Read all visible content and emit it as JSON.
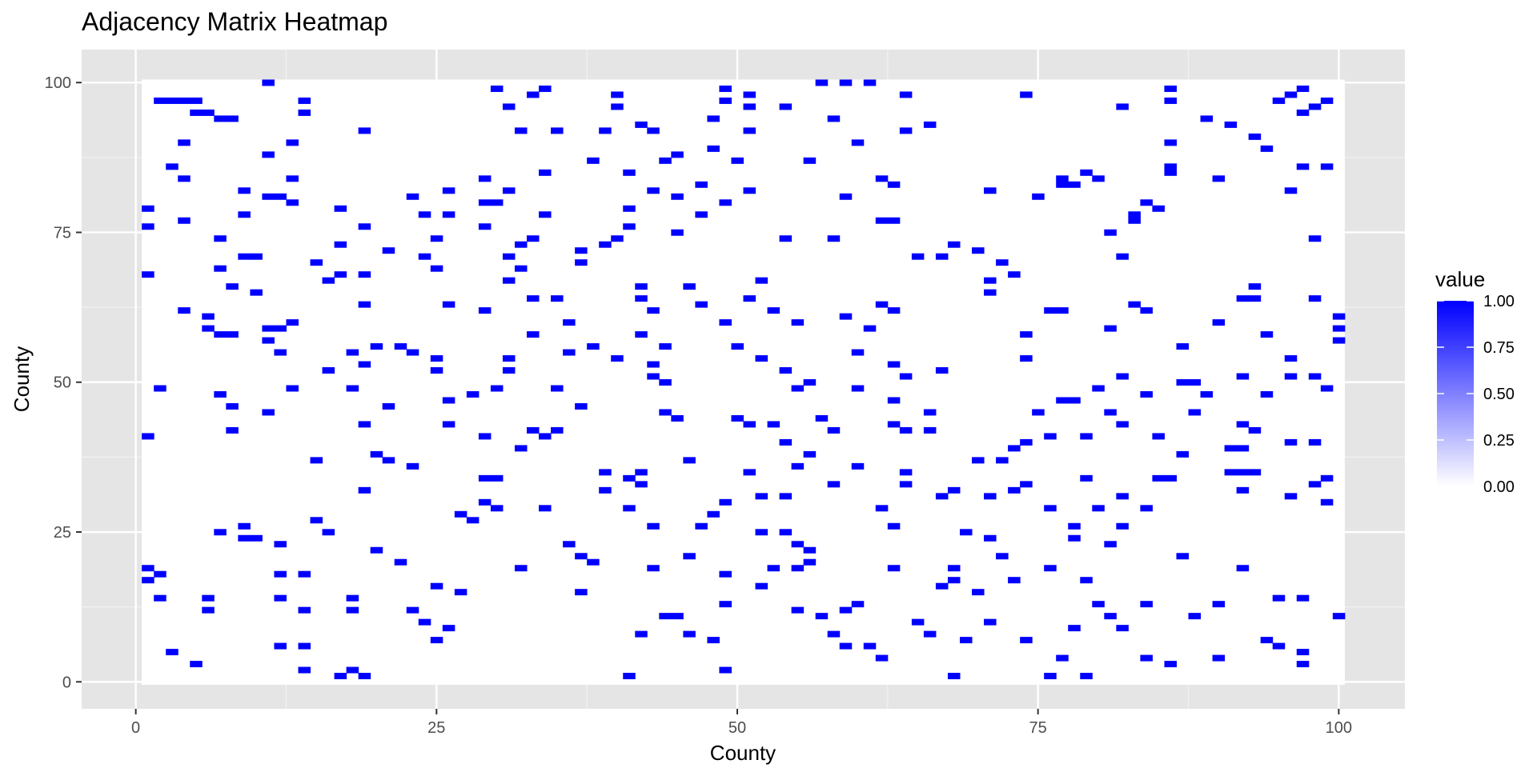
{
  "chart_data": {
    "type": "heatmap",
    "title": "Adjacency Matrix Heatmap",
    "xlabel": "County",
    "ylabel": "County",
    "xlim": [
      -4.5,
      105.5
    ],
    "ylim": [
      -4.5,
      105.5
    ],
    "x_ticks": [
      0,
      25,
      50,
      75,
      100
    ],
    "y_ticks": [
      0,
      25,
      50,
      75,
      100
    ],
    "grid": true,
    "legend": {
      "title": "value",
      "position": "right",
      "ticks": [
        "1.00",
        "0.75",
        "0.50",
        "0.25",
        "0.00"
      ],
      "tick_values": [
        1,
        0.75,
        0.5,
        0.25,
        0
      ],
      "low_color": "#ffffff",
      "high_color": "#0000ff"
    },
    "colors": {
      "panel_background": "#e5e5e5",
      "grid_major": "#ffffff",
      "grid_minor": "#f2f2f2",
      "tile_zero": "#ffffff",
      "tile_one": "#0000ff"
    },
    "value_range": [
      0,
      100
    ],
    "zero_fill": true,
    "cells_value_1": [
      [
        1,
        19
      ],
      [
        1,
        17
      ],
      [
        1,
        41
      ],
      [
        1,
        68
      ],
      [
        1,
        76
      ],
      [
        1,
        79
      ],
      [
        2,
        18
      ],
      [
        2,
        14
      ],
      [
        2,
        49
      ],
      [
        2,
        97
      ],
      [
        3,
        97
      ],
      [
        4,
        97
      ],
      [
        3,
        86
      ],
      [
        3,
        5
      ],
      [
        4,
        84
      ],
      [
        4,
        90
      ],
      [
        4,
        77
      ],
      [
        4,
        62
      ],
      [
        5,
        97
      ],
      [
        5,
        95
      ],
      [
        6,
        95
      ],
      [
        5,
        3
      ],
      [
        6,
        14
      ],
      [
        6,
        12
      ],
      [
        6,
        61
      ],
      [
        6,
        59
      ],
      [
        7,
        94
      ],
      [
        8,
        94
      ],
      [
        7,
        74
      ],
      [
        7,
        69
      ],
      [
        7,
        58
      ],
      [
        8,
        58
      ],
      [
        7,
        48
      ],
      [
        7,
        25
      ],
      [
        8,
        66
      ],
      [
        8,
        46
      ],
      [
        8,
        42
      ],
      [
        9,
        82
      ],
      [
        9,
        78
      ],
      [
        9,
        71
      ],
      [
        10,
        71
      ],
      [
        9,
        26
      ],
      [
        9,
        24
      ],
      [
        10,
        24
      ],
      [
        10,
        65
      ],
      [
        11,
        100
      ],
      [
        11,
        88
      ],
      [
        11,
        81
      ],
      [
        12,
        81
      ],
      [
        11,
        59
      ],
      [
        12,
        59
      ],
      [
        11,
        57
      ],
      [
        11,
        45
      ],
      [
        12,
        23
      ],
      [
        12,
        18
      ],
      [
        12,
        14
      ],
      [
        12,
        6
      ],
      [
        12,
        55
      ],
      [
        13,
        90
      ],
      [
        13,
        84
      ],
      [
        13,
        80
      ],
      [
        13,
        60
      ],
      [
        13,
        49
      ],
      [
        14,
        97
      ],
      [
        14,
        95
      ],
      [
        14,
        18
      ],
      [
        14,
        12
      ],
      [
        14,
        6
      ],
      [
        14,
        2
      ],
      [
        15,
        70
      ],
      [
        15,
        37
      ],
      [
        15,
        27
      ],
      [
        16,
        67
      ],
      [
        16,
        52
      ],
      [
        16,
        25
      ],
      [
        17,
        79
      ],
      [
        17,
        73
      ],
      [
        17,
        68
      ],
      [
        17,
        1
      ],
      [
        18,
        55
      ],
      [
        18,
        49
      ],
      [
        18,
        14
      ],
      [
        18,
        12
      ],
      [
        18,
        2
      ],
      [
        19,
        92
      ],
      [
        19,
        76
      ],
      [
        19,
        68
      ],
      [
        19,
        63
      ],
      [
        19,
        53
      ],
      [
        19,
        43
      ],
      [
        19,
        32
      ],
      [
        19,
        1
      ],
      [
        20,
        56
      ],
      [
        20,
        38
      ],
      [
        20,
        22
      ],
      [
        21,
        72
      ],
      [
        21,
        46
      ],
      [
        21,
        37
      ],
      [
        22,
        56
      ],
      [
        22,
        20
      ],
      [
        23,
        81
      ],
      [
        23,
        55
      ],
      [
        23,
        36
      ],
      [
        23,
        12
      ],
      [
        24,
        78
      ],
      [
        24,
        71
      ],
      [
        24,
        10
      ],
      [
        25,
        74
      ],
      [
        25,
        69
      ],
      [
        25,
        54
      ],
      [
        25,
        52
      ],
      [
        25,
        16
      ],
      [
        25,
        7
      ],
      [
        26,
        82
      ],
      [
        26,
        78
      ],
      [
        26,
        63
      ],
      [
        26,
        47
      ],
      [
        26,
        43
      ],
      [
        26,
        9
      ],
      [
        27,
        28
      ],
      [
        27,
        15
      ],
      [
        28,
        48
      ],
      [
        28,
        27
      ],
      [
        29,
        84
      ],
      [
        29,
        80
      ],
      [
        30,
        80
      ],
      [
        29,
        76
      ],
      [
        29,
        62
      ],
      [
        29,
        41
      ],
      [
        29,
        30
      ],
      [
        29,
        34
      ],
      [
        30,
        34
      ],
      [
        30,
        99
      ],
      [
        30,
        49
      ],
      [
        30,
        29
      ],
      [
        31,
        96
      ],
      [
        31,
        82
      ],
      [
        31,
        71
      ],
      [
        31,
        67
      ],
      [
        31,
        54
      ],
      [
        31,
        52
      ],
      [
        32,
        92
      ],
      [
        32,
        73
      ],
      [
        32,
        69
      ],
      [
        32,
        39
      ],
      [
        32,
        19
      ],
      [
        33,
        98
      ],
      [
        33,
        74
      ],
      [
        33,
        64
      ],
      [
        33,
        58
      ],
      [
        33,
        42
      ],
      [
        34,
        99
      ],
      [
        34,
        85
      ],
      [
        34,
        78
      ],
      [
        34,
        41
      ],
      [
        34,
        29
      ],
      [
        35,
        92
      ],
      [
        35,
        64
      ],
      [
        35,
        49
      ],
      [
        35,
        42
      ],
      [
        36,
        60
      ],
      [
        36,
        55
      ],
      [
        36,
        23
      ],
      [
        37,
        72
      ],
      [
        37,
        70
      ],
      [
        37,
        46
      ],
      [
        37,
        21
      ],
      [
        37,
        15
      ],
      [
        38,
        87
      ],
      [
        38,
        56
      ],
      [
        38,
        20
      ],
      [
        39,
        92
      ],
      [
        39,
        73
      ],
      [
        39,
        35
      ],
      [
        39,
        32
      ],
      [
        40,
        98
      ],
      [
        40,
        96
      ],
      [
        40,
        74
      ],
      [
        40,
        54
      ],
      [
        41,
        85
      ],
      [
        41,
        79
      ],
      [
        41,
        76
      ],
      [
        41,
        34
      ],
      [
        41,
        29
      ],
      [
        41,
        1
      ],
      [
        42,
        93
      ],
      [
        42,
        66
      ],
      [
        42,
        64
      ],
      [
        42,
        58
      ],
      [
        42,
        35
      ],
      [
        42,
        33
      ],
      [
        42,
        8
      ],
      [
        43,
        92
      ],
      [
        43,
        82
      ],
      [
        43,
        62
      ],
      [
        43,
        53
      ],
      [
        43,
        51
      ],
      [
        43,
        19
      ],
      [
        43,
        26
      ],
      [
        44,
        87
      ],
      [
        44,
        56
      ],
      [
        44,
        45
      ],
      [
        44,
        50
      ],
      [
        44,
        11
      ],
      [
        45,
        88
      ],
      [
        45,
        81
      ],
      [
        45,
        75
      ],
      [
        45,
        44
      ],
      [
        45,
        11
      ],
      [
        46,
        66
      ],
      [
        46,
        37
      ],
      [
        46,
        21
      ],
      [
        46,
        8
      ],
      [
        47,
        83
      ],
      [
        47,
        78
      ],
      [
        47,
        63
      ],
      [
        47,
        26
      ],
      [
        48,
        94
      ],
      [
        48,
        89
      ],
      [
        48,
        28
      ],
      [
        48,
        7
      ],
      [
        49,
        99
      ],
      [
        49,
        97
      ],
      [
        49,
        80
      ],
      [
        49,
        60
      ],
      [
        49,
        30
      ],
      [
        49,
        18
      ],
      [
        49,
        13
      ],
      [
        49,
        2
      ],
      [
        50,
        87
      ],
      [
        50,
        56
      ],
      [
        50,
        44
      ],
      [
        51,
        98
      ],
      [
        51,
        96
      ],
      [
        51,
        92
      ],
      [
        51,
        82
      ],
      [
        51,
        64
      ],
      [
        51,
        43
      ],
      [
        51,
        35
      ],
      [
        52,
        67
      ],
      [
        52,
        54
      ],
      [
        52,
        31
      ],
      [
        52,
        25
      ],
      [
        52,
        16
      ],
      [
        53,
        62
      ],
      [
        53,
        43
      ],
      [
        53,
        19
      ],
      [
        54,
        96
      ],
      [
        54,
        74
      ],
      [
        54,
        52
      ],
      [
        54,
        40
      ],
      [
        54,
        31
      ],
      [
        54,
        25
      ],
      [
        55,
        60
      ],
      [
        55,
        49
      ],
      [
        55,
        36
      ],
      [
        55,
        23
      ],
      [
        55,
        19
      ],
      [
        55,
        12
      ],
      [
        56,
        87
      ],
      [
        56,
        50
      ],
      [
        56,
        38
      ],
      [
        56,
        22
      ],
      [
        56,
        20
      ],
      [
        57,
        100
      ],
      [
        57,
        44
      ],
      [
        57,
        11
      ],
      [
        58,
        94
      ],
      [
        58,
        74
      ],
      [
        58,
        42
      ],
      [
        58,
        33
      ],
      [
        58,
        8
      ],
      [
        59,
        100
      ],
      [
        59,
        81
      ],
      [
        59,
        61
      ],
      [
        59,
        12
      ],
      [
        59,
        6
      ],
      [
        60,
        90
      ],
      [
        60,
        55
      ],
      [
        60,
        49
      ],
      [
        60,
        36
      ],
      [
        60,
        13
      ],
      [
        61,
        100
      ],
      [
        61,
        59
      ],
      [
        61,
        6
      ],
      [
        62,
        84
      ],
      [
        62,
        77
      ],
      [
        63,
        77
      ],
      [
        62,
        63
      ],
      [
        62,
        29
      ],
      [
        62,
        4
      ],
      [
        63,
        83
      ],
      [
        63,
        62
      ],
      [
        63,
        53
      ],
      [
        63,
        47
      ],
      [
        63,
        43
      ],
      [
        63,
        26
      ],
      [
        63,
        19
      ],
      [
        64,
        98
      ],
      [
        64,
        92
      ],
      [
        64,
        51
      ],
      [
        64,
        42
      ],
      [
        64,
        35
      ],
      [
        64,
        33
      ],
      [
        65,
        71
      ],
      [
        65,
        10
      ],
      [
        66,
        93
      ],
      [
        66,
        42
      ],
      [
        66,
        45
      ],
      [
        66,
        8
      ],
      [
        67,
        71
      ],
      [
        67,
        52
      ],
      [
        67,
        31
      ],
      [
        67,
        16
      ],
      [
        68,
        73
      ],
      [
        68,
        32
      ],
      [
        68,
        19
      ],
      [
        68,
        17
      ],
      [
        68,
        1
      ],
      [
        69,
        25
      ],
      [
        69,
        7
      ],
      [
        70,
        72
      ],
      [
        70,
        37
      ],
      [
        70,
        15
      ],
      [
        71,
        82
      ],
      [
        71,
        67
      ],
      [
        71,
        65
      ],
      [
        71,
        31
      ],
      [
        71,
        24
      ],
      [
        71,
        10
      ],
      [
        72,
        70
      ],
      [
        72,
        37
      ],
      [
        72,
        21
      ],
      [
        73,
        68
      ],
      [
        73,
        39
      ],
      [
        73,
        32
      ],
      [
        73,
        17
      ],
      [
        74,
        98
      ],
      [
        74,
        58
      ],
      [
        74,
        54
      ],
      [
        74,
        40
      ],
      [
        74,
        33
      ],
      [
        74,
        7
      ],
      [
        75,
        81
      ],
      [
        75,
        45
      ],
      [
        76,
        62
      ],
      [
        77,
        62
      ],
      [
        76,
        41
      ],
      [
        76,
        29
      ],
      [
        76,
        19
      ],
      [
        76,
        1
      ],
      [
        77,
        84
      ],
      [
        77,
        83
      ],
      [
        78,
        83
      ],
      [
        77,
        47
      ],
      [
        78,
        47
      ],
      [
        77,
        4
      ],
      [
        78,
        26
      ],
      [
        78,
        24
      ],
      [
        78,
        9
      ],
      [
        79,
        85
      ],
      [
        79,
        41
      ],
      [
        79,
        34
      ],
      [
        79,
        17
      ],
      [
        79,
        1
      ],
      [
        80,
        84
      ],
      [
        80,
        49
      ],
      [
        80,
        29
      ],
      [
        80,
        13
      ],
      [
        81,
        75
      ],
      [
        81,
        59
      ],
      [
        81,
        45
      ],
      [
        81,
        23
      ],
      [
        81,
        11
      ],
      [
        82,
        96
      ],
      [
        82,
        71
      ],
      [
        82,
        51
      ],
      [
        82,
        43
      ],
      [
        82,
        31
      ],
      [
        82,
        26
      ],
      [
        82,
        9
      ],
      [
        83,
        78
      ],
      [
        83,
        63
      ],
      [
        83,
        77
      ],
      [
        84,
        80
      ],
      [
        84,
        62
      ],
      [
        84,
        48
      ],
      [
        84,
        29
      ],
      [
        84,
        13
      ],
      [
        84,
        4
      ],
      [
        85,
        79
      ],
      [
        85,
        41
      ],
      [
        85,
        34
      ],
      [
        86,
        34
      ],
      [
        86,
        99
      ],
      [
        86,
        97
      ],
      [
        86,
        90
      ],
      [
        86,
        86
      ],
      [
        86,
        85
      ],
      [
        86,
        3
      ],
      [
        87,
        56
      ],
      [
        87,
        50
      ],
      [
        87,
        38
      ],
      [
        87,
        21
      ],
      [
        88,
        50
      ],
      [
        88,
        45
      ],
      [
        88,
        11
      ],
      [
        89,
        94
      ],
      [
        89,
        48
      ],
      [
        90,
        84
      ],
      [
        90,
        60
      ],
      [
        90,
        13
      ],
      [
        90,
        4
      ],
      [
        91,
        93
      ],
      [
        91,
        39
      ],
      [
        92,
        39
      ],
      [
        91,
        35
      ],
      [
        92,
        35
      ],
      [
        93,
        35
      ],
      [
        92,
        64
      ],
      [
        92,
        51
      ],
      [
        92,
        43
      ],
      [
        92,
        32
      ],
      [
        92,
        19
      ],
      [
        93,
        91
      ],
      [
        93,
        66
      ],
      [
        93,
        64
      ],
      [
        93,
        42
      ],
      [
        94,
        89
      ],
      [
        94,
        58
      ],
      [
        94,
        48
      ],
      [
        94,
        7
      ],
      [
        95,
        97
      ],
      [
        95,
        14
      ],
      [
        95,
        6
      ],
      [
        96,
        98
      ],
      [
        96,
        82
      ],
      [
        96,
        54
      ],
      [
        96,
        51
      ],
      [
        96,
        40
      ],
      [
        96,
        31
      ],
      [
        97,
        99
      ],
      [
        97,
        95
      ],
      [
        97,
        86
      ],
      [
        97,
        14
      ],
      [
        97,
        5
      ],
      [
        97,
        3
      ],
      [
        98,
        96
      ],
      [
        98,
        74
      ],
      [
        98,
        64
      ],
      [
        98,
        51
      ],
      [
        98,
        40
      ],
      [
        98,
        33
      ],
      [
        99,
        97
      ],
      [
        99,
        86
      ],
      [
        99,
        49
      ],
      [
        99,
        34
      ],
      [
        99,
        30
      ],
      [
        100,
        61
      ],
      [
        100,
        59
      ],
      [
        100,
        57
      ],
      [
        100,
        11
      ]
    ]
  }
}
